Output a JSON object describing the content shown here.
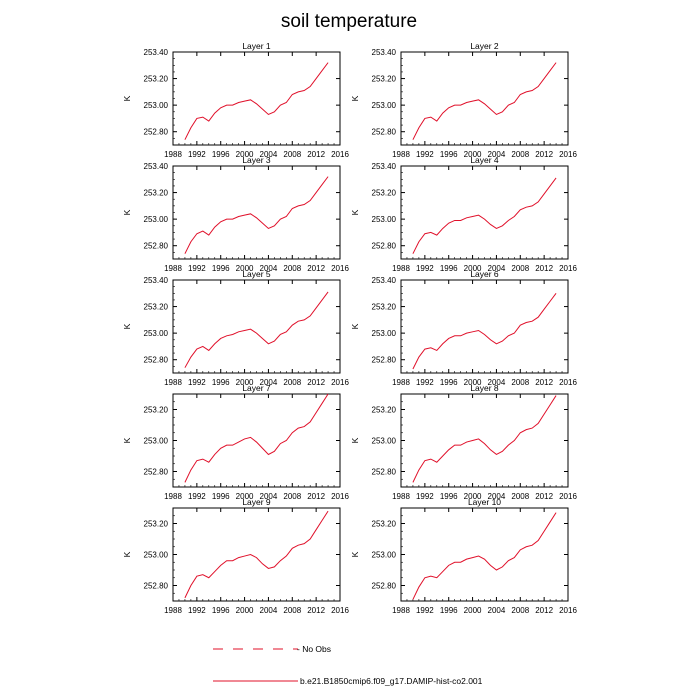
{
  "figure": {
    "title": "soil temperature",
    "legend": {
      "entries": [
        {
          "label": "- No Obs",
          "style": "dashed",
          "color": "#e0102a"
        },
        {
          "label": "b.e21.B1850cmip6.f09_g17.DAMIP-hist-co2.001",
          "style": "solid",
          "color": "#e0102a"
        }
      ]
    },
    "series_color": "#e0102a"
  },
  "chart_data": [
    {
      "type": "line",
      "title": "Layer 1",
      "ylabel": "K",
      "xlabel": "",
      "xlim": [
        1988,
        2016
      ],
      "ylim": [
        252.7,
        253.4
      ],
      "xticks": [
        "1988",
        "1992",
        "1996",
        "2000",
        "2004",
        "2008",
        "2012",
        "2016"
      ],
      "yticks": [
        "252.80",
        "253.00",
        "253.20",
        "253.40"
      ],
      "series": [
        {
          "x": [
            1990,
            1991,
            1992,
            1993,
            1994,
            1995,
            1996,
            1997,
            1998,
            1999,
            2000,
            2001,
            2002,
            2003,
            2004,
            2005,
            2006,
            2007,
            2008,
            2009,
            2010,
            2011,
            2012,
            2013,
            2014
          ],
          "y": [
            252.74,
            252.83,
            252.9,
            252.91,
            252.88,
            252.94,
            252.98,
            253.0,
            253.0,
            253.02,
            253.03,
            253.04,
            253.01,
            252.97,
            252.93,
            252.95,
            253.0,
            253.02,
            253.08,
            253.1,
            253.11,
            253.14,
            253.2,
            253.26,
            253.32
          ]
        }
      ]
    },
    {
      "type": "line",
      "title": "Layer 2",
      "ylabel": "K",
      "xlabel": "",
      "xlim": [
        1988,
        2016
      ],
      "ylim": [
        252.7,
        253.4
      ],
      "xticks": [
        "1988",
        "1992",
        "1996",
        "2000",
        "2004",
        "2008",
        "2012",
        "2016"
      ],
      "yticks": [
        "252.80",
        "253.00",
        "253.20",
        "253.40"
      ],
      "series": [
        {
          "x": [
            1990,
            1991,
            1992,
            1993,
            1994,
            1995,
            1996,
            1997,
            1998,
            1999,
            2000,
            2001,
            2002,
            2003,
            2004,
            2005,
            2006,
            2007,
            2008,
            2009,
            2010,
            2011,
            2012,
            2013,
            2014
          ],
          "y": [
            252.74,
            252.83,
            252.9,
            252.91,
            252.88,
            252.94,
            252.98,
            253.0,
            253.0,
            253.02,
            253.03,
            253.04,
            253.01,
            252.97,
            252.93,
            252.95,
            253.0,
            253.02,
            253.08,
            253.1,
            253.11,
            253.14,
            253.2,
            253.26,
            253.32
          ]
        }
      ]
    },
    {
      "type": "line",
      "title": "Layer 3",
      "ylabel": "K",
      "xlabel": "",
      "xlim": [
        1988,
        2016
      ],
      "ylim": [
        252.7,
        253.4
      ],
      "xticks": [
        "1988",
        "1992",
        "1996",
        "2000",
        "2004",
        "2008",
        "2012",
        "2016"
      ],
      "yticks": [
        "252.80",
        "253.00",
        "253.20",
        "253.40"
      ],
      "series": [
        {
          "x": [
            1990,
            1991,
            1992,
            1993,
            1994,
            1995,
            1996,
            1997,
            1998,
            1999,
            2000,
            2001,
            2002,
            2003,
            2004,
            2005,
            2006,
            2007,
            2008,
            2009,
            2010,
            2011,
            2012,
            2013,
            2014
          ],
          "y": [
            252.74,
            252.83,
            252.89,
            252.91,
            252.88,
            252.94,
            252.98,
            253.0,
            253.0,
            253.02,
            253.03,
            253.04,
            253.01,
            252.97,
            252.93,
            252.95,
            253.0,
            253.02,
            253.08,
            253.1,
            253.11,
            253.14,
            253.2,
            253.26,
            253.32
          ]
        }
      ]
    },
    {
      "type": "line",
      "title": "Layer 4",
      "ylabel": "K",
      "xlabel": "",
      "xlim": [
        1988,
        2016
      ],
      "ylim": [
        252.7,
        253.4
      ],
      "xticks": [
        "1988",
        "1992",
        "1996",
        "2000",
        "2004",
        "2008",
        "2012",
        "2016"
      ],
      "yticks": [
        "252.80",
        "253.00",
        "253.20",
        "253.40"
      ],
      "series": [
        {
          "x": [
            1990,
            1991,
            1992,
            1993,
            1994,
            1995,
            1996,
            1997,
            1998,
            1999,
            2000,
            2001,
            2002,
            2003,
            2004,
            2005,
            2006,
            2007,
            2008,
            2009,
            2010,
            2011,
            2012,
            2013,
            2014
          ],
          "y": [
            252.74,
            252.83,
            252.89,
            252.9,
            252.88,
            252.93,
            252.97,
            252.99,
            252.99,
            253.01,
            253.02,
            253.03,
            253.0,
            252.96,
            252.93,
            252.95,
            252.99,
            253.02,
            253.07,
            253.09,
            253.1,
            253.13,
            253.19,
            253.25,
            253.31
          ]
        }
      ]
    },
    {
      "type": "line",
      "title": "Layer 5",
      "ylabel": "K",
      "xlabel": "",
      "xlim": [
        1988,
        2016
      ],
      "ylim": [
        252.7,
        253.4
      ],
      "xticks": [
        "1988",
        "1992",
        "1996",
        "2000",
        "2004",
        "2008",
        "2012",
        "2016"
      ],
      "yticks": [
        "252.80",
        "253.00",
        "253.20",
        "253.40"
      ],
      "series": [
        {
          "x": [
            1990,
            1991,
            1992,
            1993,
            1994,
            1995,
            1996,
            1997,
            1998,
            1999,
            2000,
            2001,
            2002,
            2003,
            2004,
            2005,
            2006,
            2007,
            2008,
            2009,
            2010,
            2011,
            2012,
            2013,
            2014
          ],
          "y": [
            252.74,
            252.82,
            252.88,
            252.9,
            252.87,
            252.92,
            252.96,
            252.98,
            252.99,
            253.01,
            253.02,
            253.03,
            253.0,
            252.96,
            252.92,
            252.94,
            252.99,
            253.01,
            253.06,
            253.09,
            253.1,
            253.13,
            253.19,
            253.25,
            253.31
          ]
        }
      ]
    },
    {
      "type": "line",
      "title": "Layer 6",
      "ylabel": "K",
      "xlabel": "",
      "xlim": [
        1988,
        2016
      ],
      "ylim": [
        252.7,
        253.4
      ],
      "xticks": [
        "1988",
        "1992",
        "1996",
        "2000",
        "2004",
        "2008",
        "2012",
        "2016"
      ],
      "yticks": [
        "252.80",
        "253.00",
        "253.20",
        "253.40"
      ],
      "series": [
        {
          "x": [
            1990,
            1991,
            1992,
            1993,
            1994,
            1995,
            1996,
            1997,
            1998,
            1999,
            2000,
            2001,
            2002,
            2003,
            2004,
            2005,
            2006,
            2007,
            2008,
            2009,
            2010,
            2011,
            2012,
            2013,
            2014
          ],
          "y": [
            252.73,
            252.82,
            252.88,
            252.89,
            252.87,
            252.92,
            252.96,
            252.98,
            252.98,
            253.0,
            253.01,
            253.02,
            252.99,
            252.95,
            252.92,
            252.94,
            252.98,
            253.0,
            253.06,
            253.08,
            253.09,
            253.12,
            253.18,
            253.24,
            253.3
          ]
        }
      ]
    },
    {
      "type": "line",
      "title": "Layer 7",
      "ylabel": "K",
      "xlabel": "",
      "xlim": [
        1988,
        2016
      ],
      "ylim": [
        252.7,
        253.3
      ],
      "xticks": [
        "1988",
        "1992",
        "1996",
        "2000",
        "2004",
        "2008",
        "2012",
        "2016"
      ],
      "yticks": [
        "252.80",
        "253.00",
        "253.20"
      ],
      "series": [
        {
          "x": [
            1990,
            1991,
            1992,
            1993,
            1994,
            1995,
            1996,
            1997,
            1998,
            1999,
            2000,
            2001,
            2002,
            2003,
            2004,
            2005,
            2006,
            2007,
            2008,
            2009,
            2010,
            2011,
            2012,
            2013,
            2014
          ],
          "y": [
            252.73,
            252.81,
            252.87,
            252.88,
            252.86,
            252.91,
            252.95,
            252.97,
            252.97,
            252.99,
            253.01,
            253.02,
            252.99,
            252.95,
            252.91,
            252.93,
            252.98,
            253.0,
            253.05,
            253.08,
            253.09,
            253.12,
            253.18,
            253.24,
            253.3
          ]
        }
      ]
    },
    {
      "type": "line",
      "title": "Layer 8",
      "ylabel": "K",
      "xlabel": "",
      "xlim": [
        1988,
        2016
      ],
      "ylim": [
        252.7,
        253.3
      ],
      "xticks": [
        "1988",
        "1992",
        "1996",
        "2000",
        "2004",
        "2008",
        "2012",
        "2016"
      ],
      "yticks": [
        "252.80",
        "253.00",
        "253.20"
      ],
      "series": [
        {
          "x": [
            1990,
            1991,
            1992,
            1993,
            1994,
            1995,
            1996,
            1997,
            1998,
            1999,
            2000,
            2001,
            2002,
            2003,
            2004,
            2005,
            2006,
            2007,
            2008,
            2009,
            2010,
            2011,
            2012,
            2013,
            2014
          ],
          "y": [
            252.73,
            252.81,
            252.87,
            252.88,
            252.86,
            252.9,
            252.94,
            252.97,
            252.97,
            252.99,
            253.0,
            253.01,
            252.98,
            252.94,
            252.91,
            252.93,
            252.97,
            253.0,
            253.05,
            253.07,
            253.08,
            253.11,
            253.17,
            253.23,
            253.29
          ]
        }
      ]
    },
    {
      "type": "line",
      "title": "Layer 9",
      "ylabel": "K",
      "xlabel": "",
      "xlim": [
        1988,
        2016
      ],
      "ylim": [
        252.7,
        253.3
      ],
      "xticks": [
        "1988",
        "1992",
        "1996",
        "2000",
        "2004",
        "2008",
        "2012",
        "2016"
      ],
      "yticks": [
        "252.80",
        "253.00",
        "253.20"
      ],
      "series": [
        {
          "x": [
            1990,
            1991,
            1992,
            1993,
            1994,
            1995,
            1996,
            1997,
            1998,
            1999,
            2000,
            2001,
            2002,
            2003,
            2004,
            2005,
            2006,
            2007,
            2008,
            2009,
            2010,
            2011,
            2012,
            2013,
            2014
          ],
          "y": [
            252.72,
            252.8,
            252.86,
            252.87,
            252.85,
            252.89,
            252.93,
            252.96,
            252.96,
            252.98,
            252.99,
            253.0,
            252.98,
            252.94,
            252.91,
            252.92,
            252.96,
            252.99,
            253.04,
            253.06,
            253.07,
            253.1,
            253.16,
            253.22,
            253.28
          ]
        }
      ]
    },
    {
      "type": "line",
      "title": "Layer 10",
      "ylabel": "K",
      "xlabel": "",
      "xlim": [
        1988,
        2016
      ],
      "ylim": [
        252.7,
        253.3
      ],
      "xticks": [
        "1988",
        "1992",
        "1996",
        "2000",
        "2004",
        "2008",
        "2012",
        "2016"
      ],
      "yticks": [
        "252.80",
        "253.00",
        "253.20"
      ],
      "series": [
        {
          "x": [
            1990,
            1991,
            1992,
            1993,
            1994,
            1995,
            1996,
            1997,
            1998,
            1999,
            2000,
            2001,
            2002,
            2003,
            2004,
            2005,
            2006,
            2007,
            2008,
            2009,
            2010,
            2011,
            2012,
            2013,
            2014
          ],
          "y": [
            252.71,
            252.79,
            252.85,
            252.86,
            252.85,
            252.89,
            252.93,
            252.95,
            252.95,
            252.97,
            252.98,
            252.99,
            252.97,
            252.93,
            252.9,
            252.92,
            252.96,
            252.98,
            253.03,
            253.05,
            253.06,
            253.09,
            253.15,
            253.21,
            253.27
          ]
        }
      ]
    }
  ]
}
